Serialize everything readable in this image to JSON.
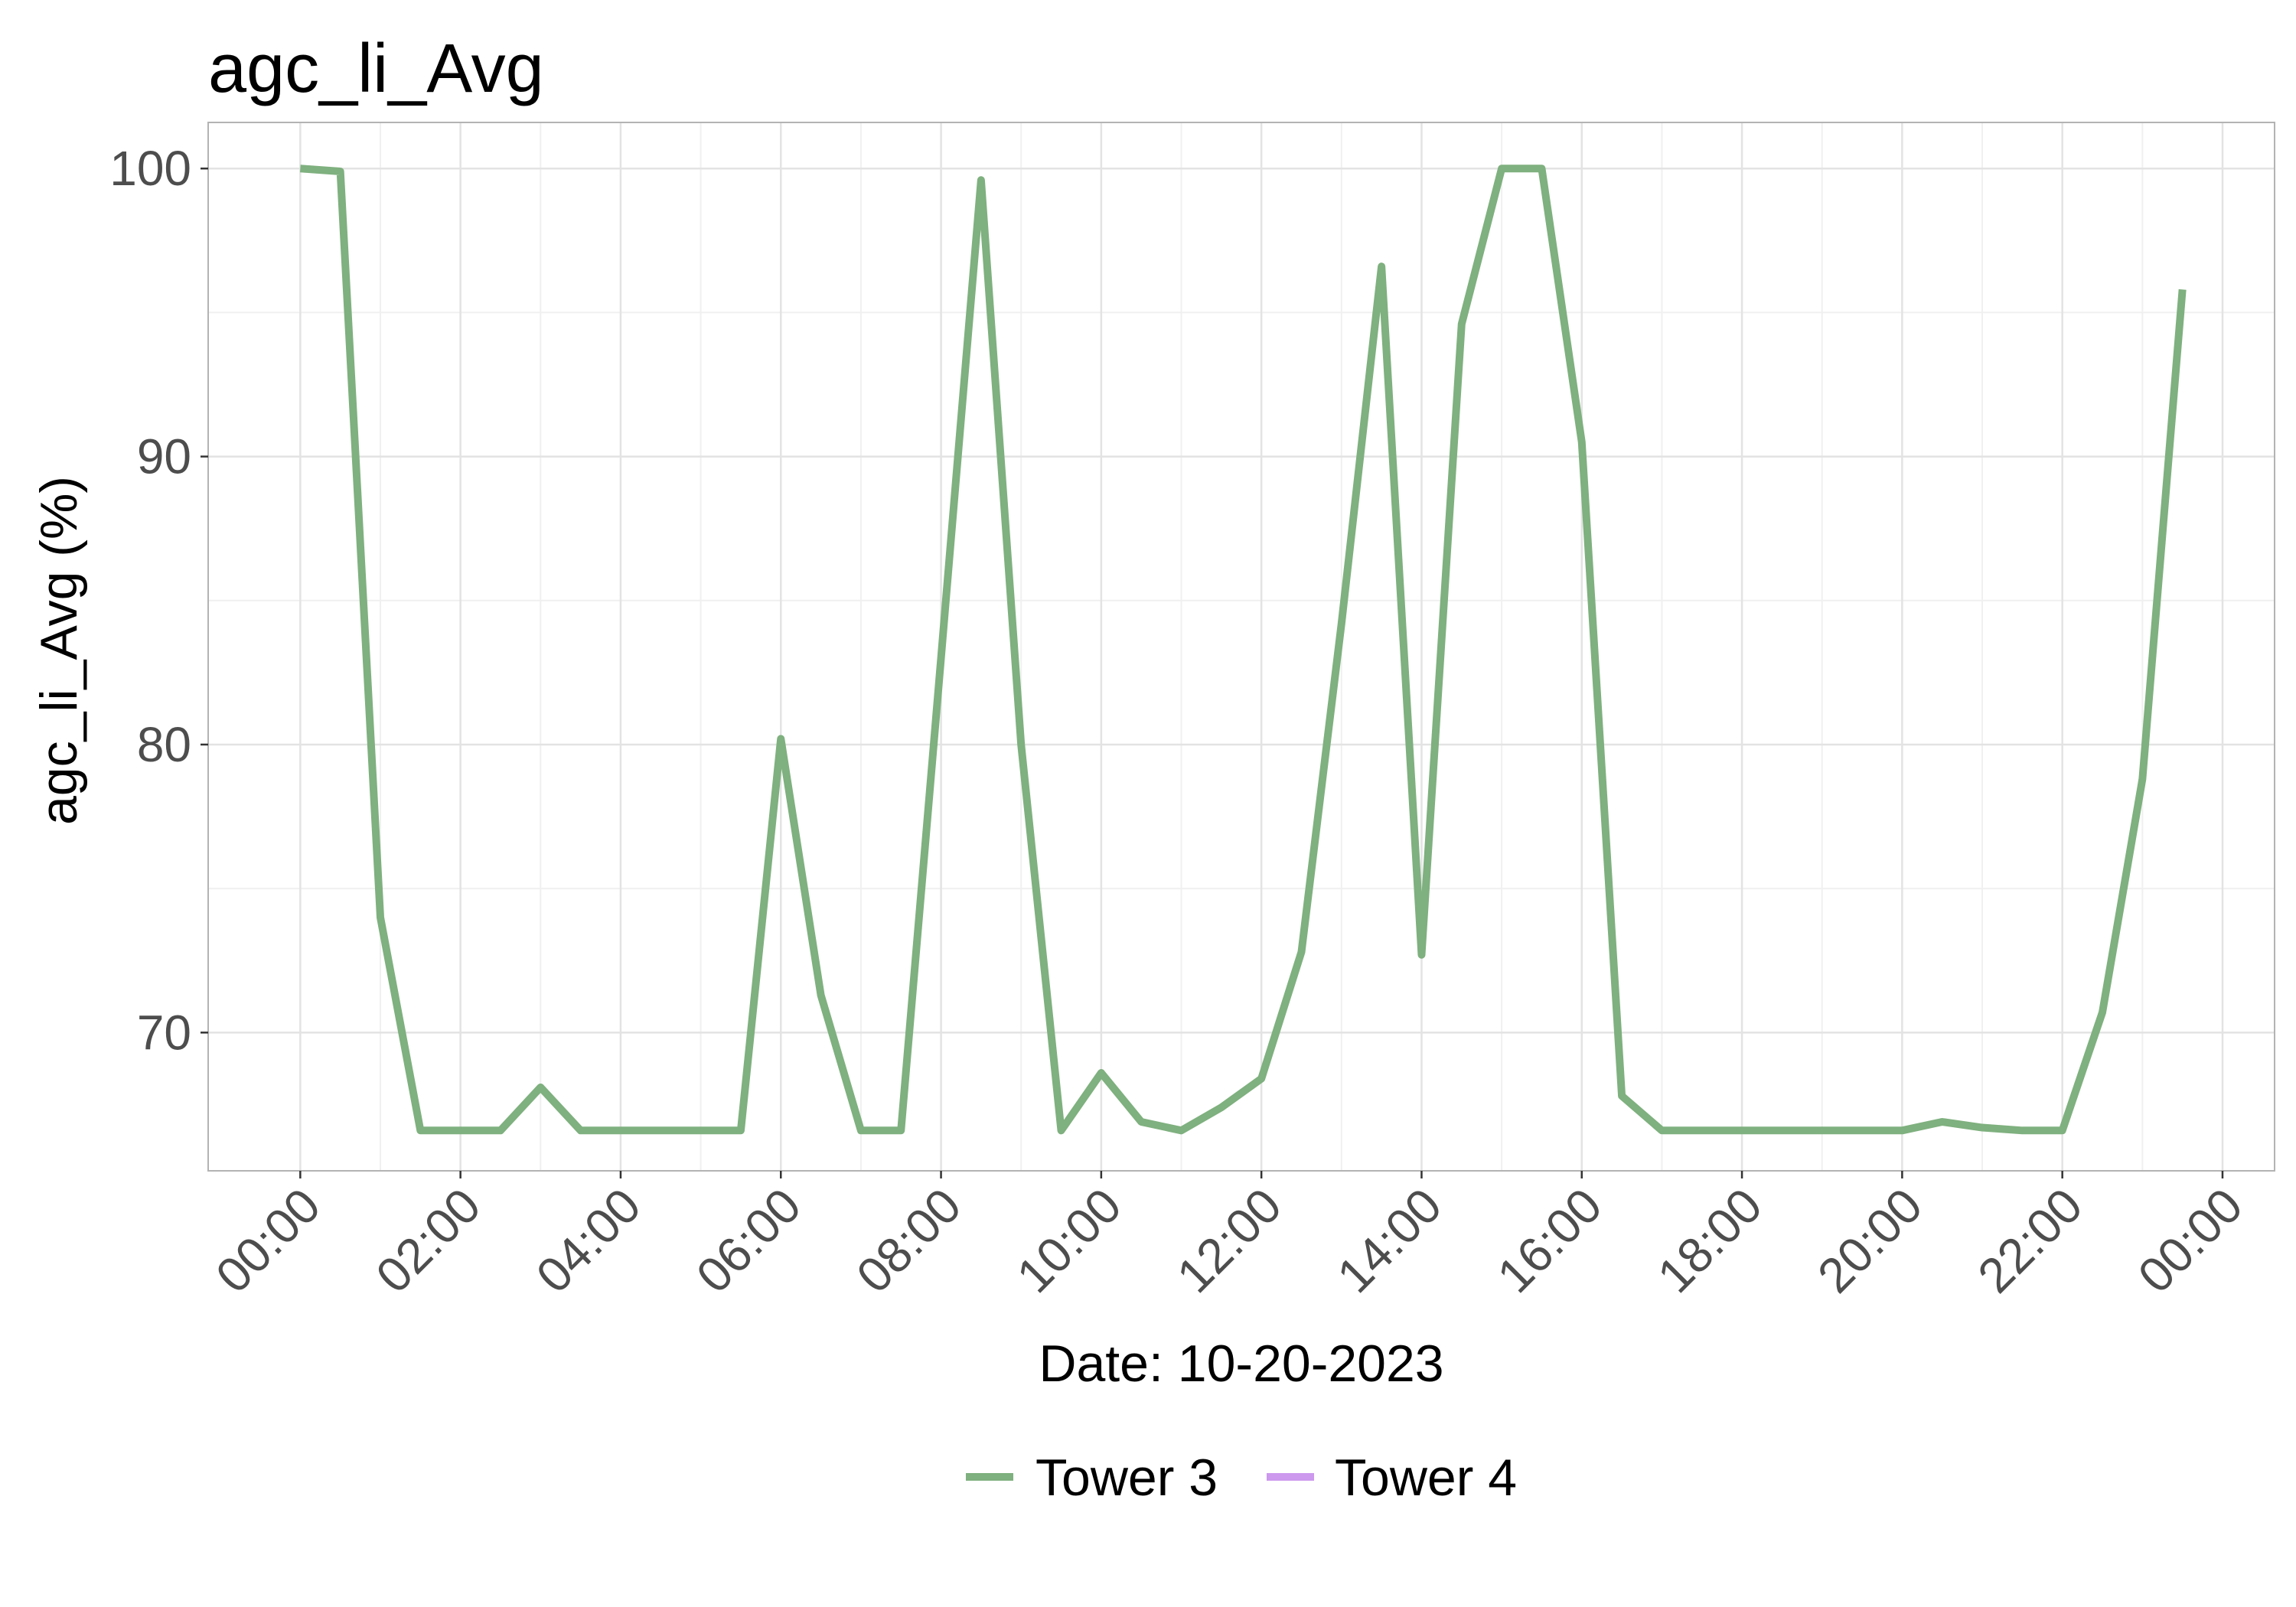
{
  "chart_data": {
    "type": "line",
    "title": "agc_li_Avg",
    "xlabel": "Date: 10-20-2023",
    "ylabel": "agc_li_Avg (%)",
    "x_tick_labels": [
      "00:00",
      "02:00",
      "04:00",
      "06:00",
      "08:00",
      "10:00",
      "12:00",
      "14:00",
      "16:00",
      "18:00",
      "20:00",
      "22:00",
      "00:00"
    ],
    "x_ticks_hours": [
      0,
      2,
      4,
      6,
      8,
      10,
      12,
      14,
      16,
      18,
      20,
      22,
      24
    ],
    "y_ticks": [
      70,
      80,
      90,
      100
    ],
    "xlim_hours": [
      -1.15,
      24.65
    ],
    "ylim": [
      65.2,
      101.6
    ],
    "grid": true,
    "legend_position": "bottom",
    "series": [
      {
        "name": "Tower 3",
        "color": "#7fb07f",
        "x_hours": [
          0,
          0.5,
          1,
          1.5,
          2,
          2.5,
          3,
          3.5,
          4,
          4.5,
          5,
          5.5,
          6,
          6.5,
          7,
          7.5,
          8,
          8.5,
          9,
          9.5,
          10,
          10.5,
          11,
          11.5,
          12,
          12.5,
          13,
          13.5,
          14,
          14.5,
          15,
          15.5,
          16,
          16.5,
          17,
          17.5,
          18,
          18.5,
          19,
          19.5,
          20,
          20.5,
          21,
          21.5,
          22,
          22.5,
          23,
          23.5
        ],
        "values": [
          100,
          99.9,
          74,
          66.6,
          66.6,
          66.6,
          68.1,
          66.6,
          66.6,
          66.6,
          66.6,
          66.6,
          80.2,
          71.3,
          66.6,
          66.6,
          83,
          99.6,
          80,
          66.6,
          68.6,
          66.9,
          66.6,
          67.4,
          68.4,
          72.8,
          84.2,
          96.6,
          72.7,
          94.6,
          100,
          100,
          90.5,
          67.8,
          66.6,
          66.6,
          66.6,
          66.6,
          66.6,
          66.6,
          66.6,
          66.9,
          66.7,
          66.6,
          66.6,
          70.7,
          78.8,
          95.8
        ]
      },
      {
        "name": "Tower 4",
        "color": "#cc99ee",
        "x_hours": [],
        "values": []
      }
    ]
  }
}
